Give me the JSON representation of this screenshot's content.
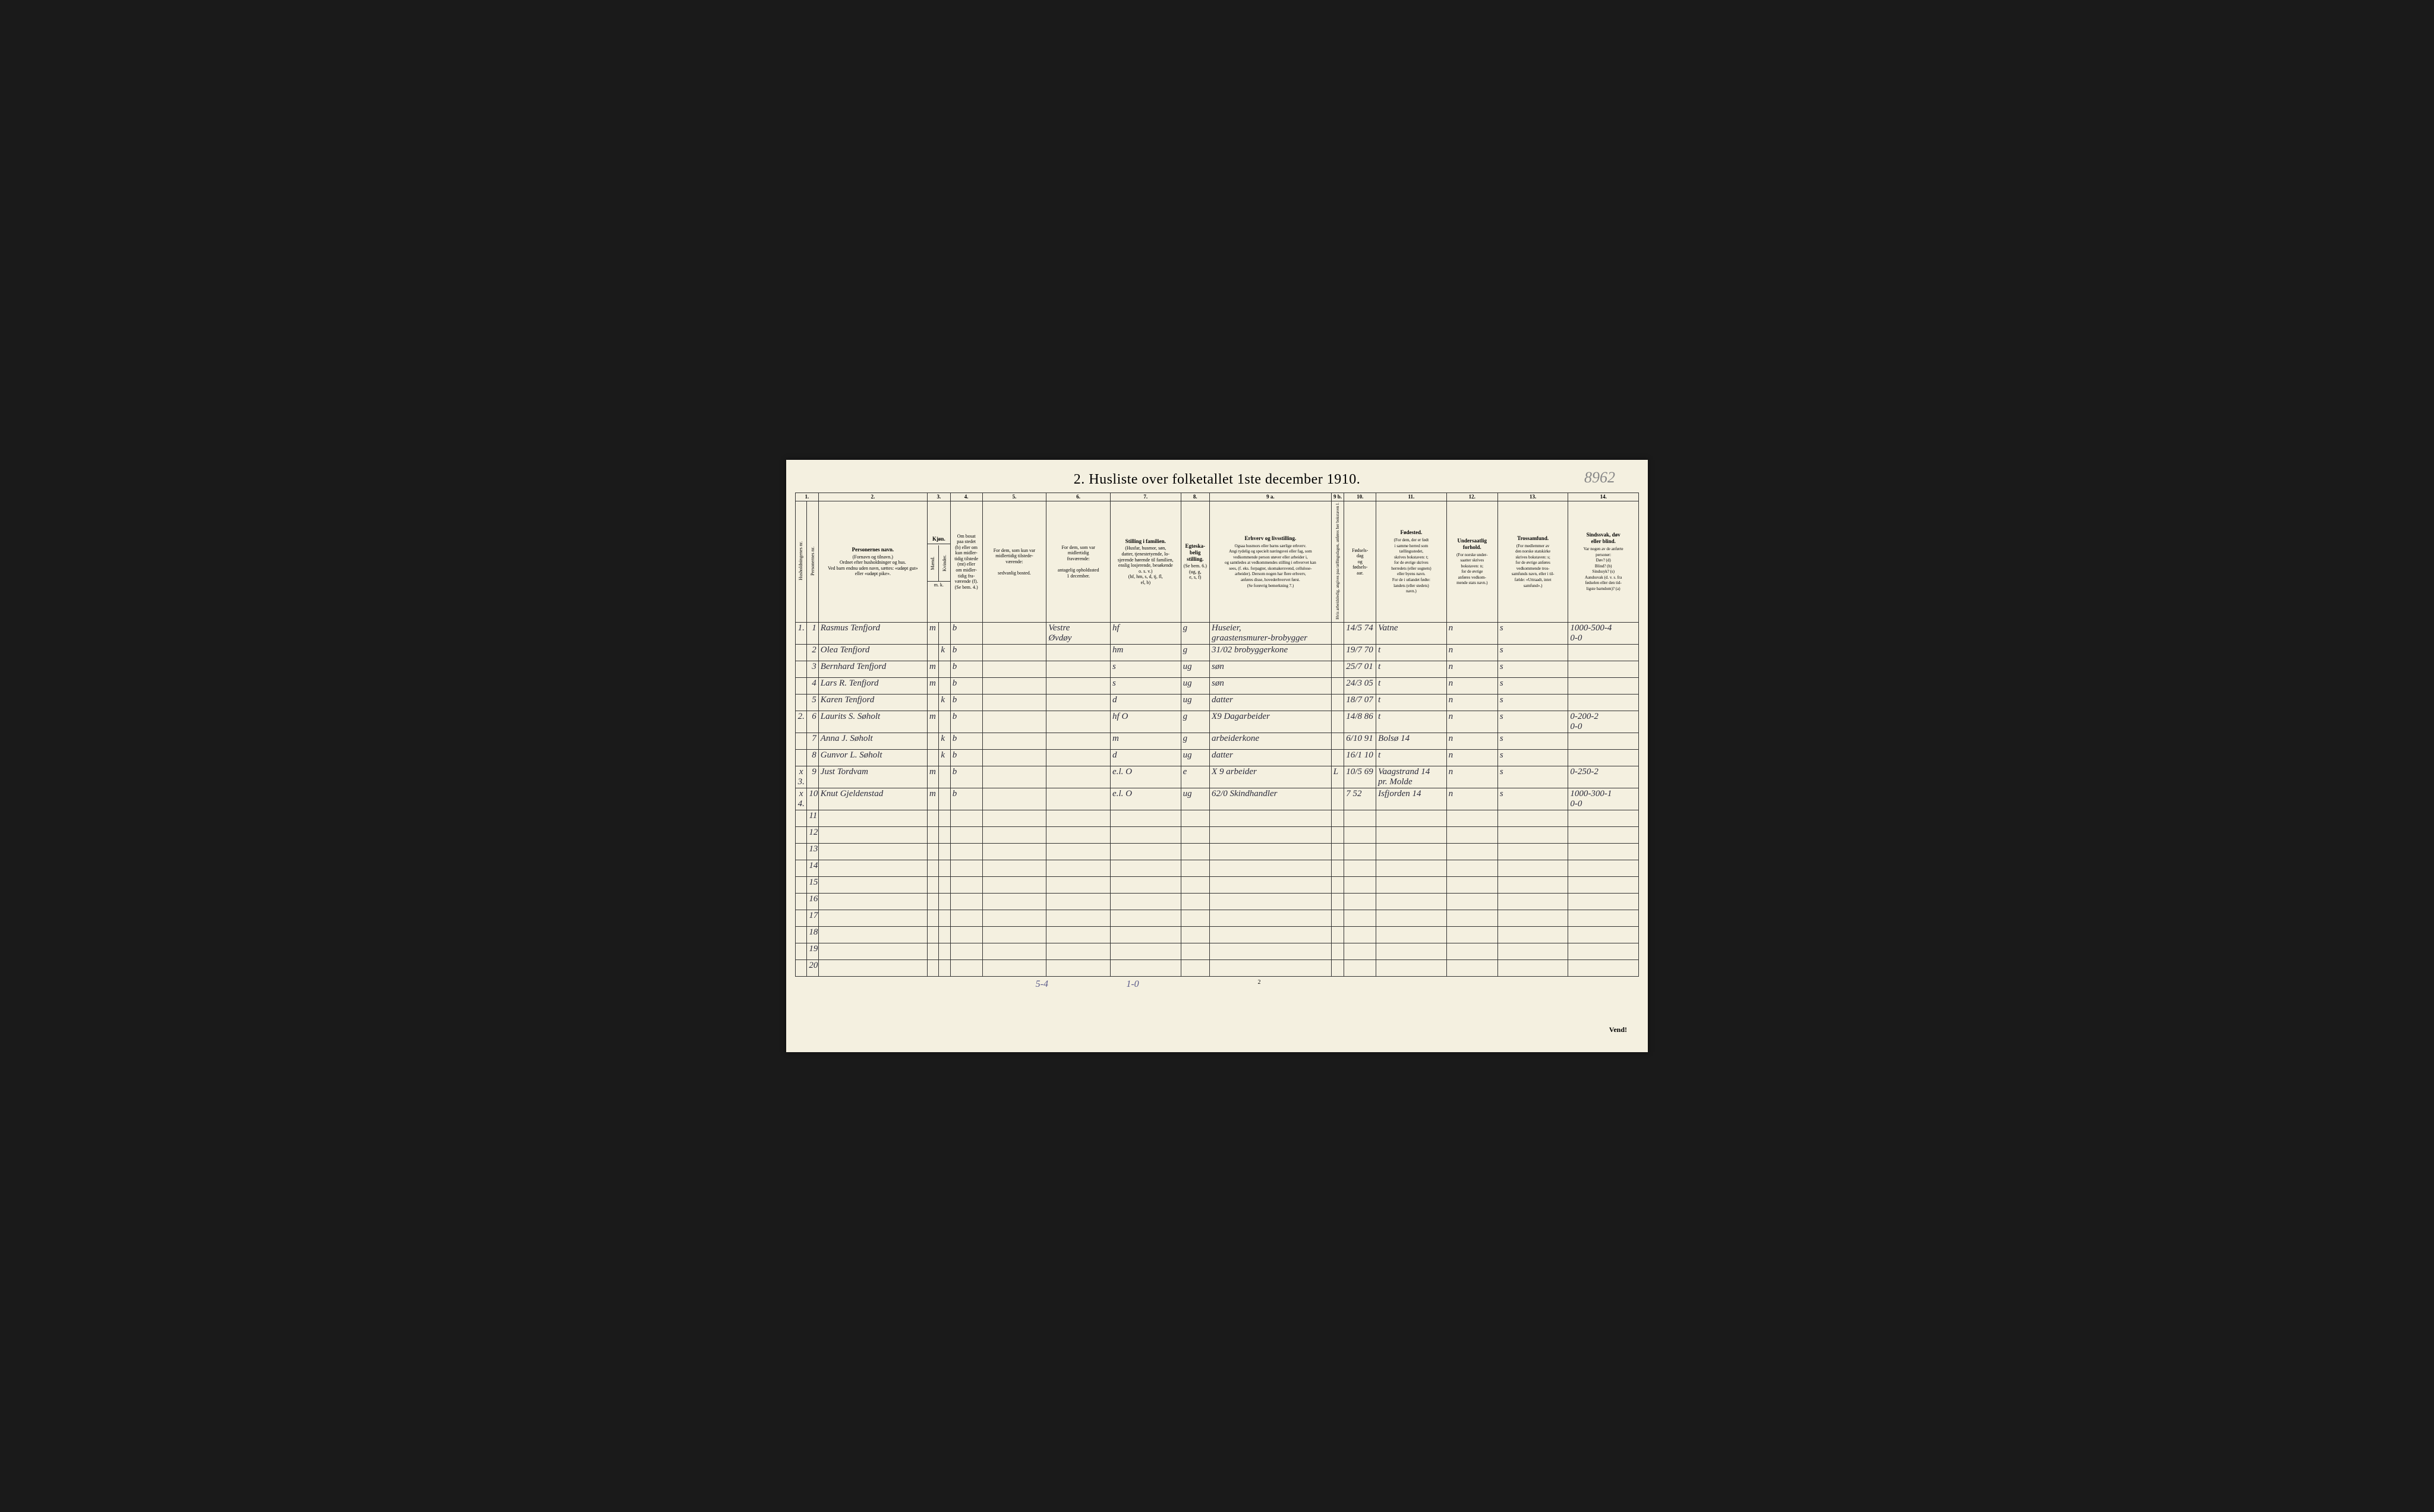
{
  "title": "2.  Husliste over folketallet 1ste december 1910.",
  "pencil_top_right": "8962",
  "page_number_bottom": "2",
  "vend_text": "Vend!",
  "pencil_bottom_left": "5-4",
  "pencil_bottom_mid": "1-0",
  "column_numbers": [
    "1.",
    "2.",
    "3.",
    "4.",
    "5.",
    "6.",
    "7.",
    "8.",
    "9 a.",
    "9 b.",
    "10.",
    "11.",
    "12.",
    "13.",
    "14."
  ],
  "headers": {
    "c1a": "Husholdningenes nr.",
    "c1b": "Personernes nr.",
    "c2_title": "Personernes navn.",
    "c2_sub": "(Fornavn og tilnavn.)\nOrdnet efter husholdninger og hus.\nVed barn endnu uden navn, sættes: «udøpt gut»\neller «udøpt pike».",
    "c3_title": "Kjøn.",
    "c3_m": "Mænd.",
    "c3_k": "Kvinder.",
    "c3_mk": "m.  k.",
    "c4": "Om bosat\npaa stedet\n(b) eller om\nkun midler-\ntidig tilstede\n(mt) eller\nom midler-\ntidig fra-\nværende (f).\n(Se bem. 4.)",
    "c5": "For dem, som kun var\nmidlertidig tilstede-\nværende:\n\nsedvanlig bosted.",
    "c6": "For dem, som var\nmidlertidig\nfraværende:\n\nantagelig opholdssted\n1 december.",
    "c7_title": "Stilling i familien.",
    "c7_sub": "(Husfar, husmor, søn,\ndatter, tjenestetyende, lo-\nsjerende hørende til familien,\nenslig losjerende, besøkende\no. s. v.)\n(hf, hm, s, d, tj, fl,\nel, b)",
    "c8_title": "Egteska-\nbelig\nstilling.",
    "c8_sub": "(Se bem. 6.)\n(ug, g,\ne, s, f)",
    "c9a_title": "Erhverv og livsstilling.",
    "c9a_sub": "Ogsaa husmors eller barns særlige erhverv.\nAngi tydelig og specielt næringsvei eller fag, som\nvedkommende person utøver eller arbeider i,\nog samtledes at vedkommendes stilling i erhvervet kan\nsees, (f. eks. forpagter, skomakersvend, cellulose-\narbeider). Dersom nogen har flere erhverv,\nanføres disse, hovederhvervet først.\n(Se forøvrig bemerkning 7.)",
    "c9b": "Hvis arbeidsledig, angives\npaa tællingsdagen, anføres\nher bokstaven l.",
    "c10": "Fødsels-\ndag\nog\nfødsels-\naar.",
    "c11_title": "Fødested.",
    "c11_sub": "(For dem, der er født\ni samme herred som\ntællingsstedet,\nskrives bokstaven: t;\nfor de øvrige skrives\nherredets (eller sognets)\neller byens navn.\nFor de i utlandet fødte:\nlandets (eller stedets)\nnavn.)",
    "c12_title": "Undersaatlig\nforhold.",
    "c12_sub": "(For norske under-\nsaatter skrives\nbokstaven: n;\nfor de øvrige\nanføres vedkom-\nmende stats navn.)",
    "c13_title": "Trossamfund.",
    "c13_sub": "(For medlemmer av\nden norske statskirke\nskrives bokstaven: s;\nfor de øvrige anføres\nvedkommende tros-\nsamfunds navn, eller i til-\nfælde: «Uttraadt, intet\nsamfund».)",
    "c14_title": "Sindssvak, døv\neller blind.",
    "c14_sub": "Var nogen av de anførte\npersoner:\nDøv?        (d)\nBlind?      (b)\nSindssyk?  (s)\nAandssvak (d. v. s. fra\nfødselen eller den tid-\nligste barndom)? (a)"
  },
  "rows": [
    {
      "hh": "1.",
      "pn": "1",
      "name": "Rasmus Tenfjord",
      "sex": "m",
      "res": "b",
      "c5": "",
      "c6": "Vestre\nØvdøy",
      "fam": "hf",
      "mar": "g",
      "occ": "Huseier,\ngraastensmurer-brobygger",
      "l": "",
      "dob": "14/5 74",
      "birthplace": "Vatne",
      "nat": "n",
      "rel": "s",
      "c14": "1000-500-4\n0-0"
    },
    {
      "hh": "",
      "pn": "2",
      "name": "Olea Tenfjord",
      "sex": "k",
      "res": "b",
      "c5": "",
      "c6": "",
      "fam": "hm",
      "mar": "g",
      "occ": "31/02 brobyggerkone",
      "l": "",
      "dob": "19/7 70",
      "birthplace": "t",
      "nat": "n",
      "rel": "s",
      "c14": ""
    },
    {
      "hh": "",
      "pn": "3",
      "name": "Bernhard Tenfjord",
      "sex": "m",
      "res": "b",
      "c5": "",
      "c6": "",
      "fam": "s",
      "mar": "ug",
      "occ": "søn",
      "l": "",
      "dob": "25/7 01",
      "birthplace": "t",
      "nat": "n",
      "rel": "s",
      "c14": ""
    },
    {
      "hh": "",
      "pn": "4",
      "name": "Lars R. Tenfjord",
      "sex": "m",
      "res": "b",
      "c5": "",
      "c6": "",
      "fam": "s",
      "mar": "ug",
      "occ": "søn",
      "l": "",
      "dob": "24/3 05",
      "birthplace": "t",
      "nat": "n",
      "rel": "s",
      "c14": ""
    },
    {
      "hh": "",
      "pn": "5",
      "name": "Karen Tenfjord",
      "sex": "k",
      "res": "b",
      "c5": "",
      "c6": "",
      "fam": "d",
      "mar": "ug",
      "occ": "datter",
      "l": "",
      "dob": "18/7 07",
      "birthplace": "t",
      "nat": "n",
      "rel": "s",
      "c14": ""
    },
    {
      "hh": "2.",
      "pn": "6",
      "name": "Laurits S. Søholt",
      "sex": "m",
      "res": "b",
      "c5": "",
      "c6": "",
      "fam": "hf   O",
      "mar": "g",
      "occ": "X9 Dagarbeider",
      "l": "",
      "dob": "14/8 86",
      "birthplace": "t",
      "nat": "n",
      "rel": "s",
      "c14": "0-200-2\n0-0"
    },
    {
      "hh": "",
      "pn": "7",
      "name": "Anna J. Søholt",
      "sex": "k",
      "res": "b",
      "c5": "",
      "c6": "",
      "fam": "m",
      "mar": "g",
      "occ": "arbeiderkone",
      "l": "",
      "dob": "6/10 91",
      "birthplace": "Bolsø  14",
      "nat": "n",
      "rel": "s",
      "c14": ""
    },
    {
      "hh": "",
      "pn": "8",
      "name": "Gunvor L. Søholt",
      "sex": "k",
      "res": "b",
      "c5": "",
      "c6": "",
      "fam": "d",
      "mar": "ug",
      "occ": "datter",
      "l": "",
      "dob": "16/1 10",
      "birthplace": "t",
      "nat": "n",
      "rel": "s",
      "c14": ""
    },
    {
      "hh": "x 3.",
      "pn": "9",
      "name": "Just Tordvam",
      "sex": "m",
      "res": "b",
      "c5": "",
      "c6": "",
      "fam": "e.l.   O",
      "mar": "e",
      "occ": "X 9 arbeider",
      "l": "L",
      "dob": "10/5 69",
      "birthplace": "Vaagstrand 14\npr. Molde",
      "nat": "n",
      "rel": "s",
      "c14": "0-250-2"
    },
    {
      "hh": "x 4.",
      "pn": "10",
      "name": "Knut Gjeldenstad",
      "sex": "m",
      "res": "b",
      "c5": "",
      "c6": "",
      "fam": "e.l.   O",
      "mar": "ug",
      "occ": "62/0 Skindhandler",
      "l": "",
      "dob": "7 52",
      "birthplace": "Isfjorden 14",
      "nat": "n",
      "rel": "s",
      "c14": "1000-300-1\n0-0"
    }
  ],
  "empty_rows": [
    11,
    12,
    13,
    14,
    15,
    16,
    17,
    18,
    19,
    20
  ],
  "colwidths": {
    "c1a": 18,
    "c1b": 18,
    "c2": 170,
    "c3m": 18,
    "c3k": 18,
    "c4": 50,
    "c5": 100,
    "c6": 100,
    "c7": 110,
    "c8": 45,
    "c9a": 190,
    "c9b": 20,
    "c10": 50,
    "c11": 110,
    "c12": 80,
    "c13": 110,
    "c14": 110
  },
  "colors": {
    "paper": "#f4f0e0",
    "ink": "#000000",
    "handwriting": "#2a2a3a",
    "pencil": "#888888",
    "border": "#333333"
  }
}
